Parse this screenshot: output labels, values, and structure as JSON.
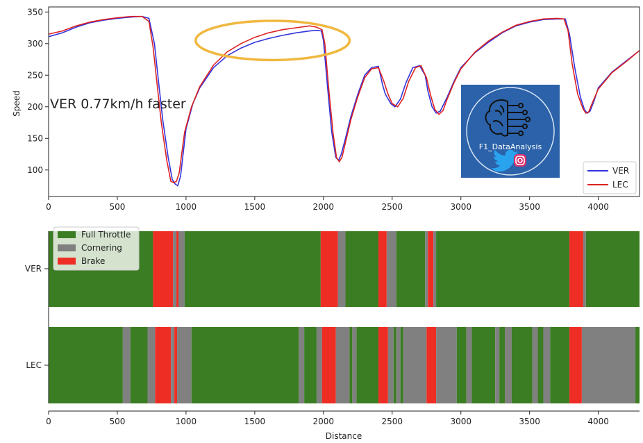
{
  "chart_data": [
    {
      "type": "line",
      "title": "",
      "xlabel": "",
      "ylabel": "Speed",
      "xlim": [
        0,
        4300
      ],
      "ylim": [
        58,
        358
      ],
      "xticks": [
        0,
        500,
        1000,
        1500,
        2000,
        2500,
        3000,
        3500,
        4000
      ],
      "yticks": [
        100,
        150,
        200,
        250,
        300,
        350
      ],
      "grid": false,
      "legend": "lower-right",
      "annotation": "VER 0.77km/h faster",
      "highlight_ellipse": {
        "cx": 1630,
        "cy": 305,
        "rx": 560,
        "ry": 31,
        "color": "#f0b840"
      },
      "series": [
        {
          "name": "VER",
          "color": "#3333dd",
          "x": [
            0,
            100,
            200,
            300,
            400,
            500,
            600,
            680,
            730,
            770,
            800,
            830,
            870,
            900,
            920,
            940,
            960,
            1000,
            1050,
            1100,
            1200,
            1300,
            1400,
            1500,
            1600,
            1700,
            1800,
            1900,
            1950,
            1985,
            2000,
            2030,
            2060,
            2090,
            2110,
            2130,
            2160,
            2200,
            2250,
            2300,
            2350,
            2400,
            2430,
            2450,
            2490,
            2520,
            2560,
            2600,
            2650,
            2700,
            2740,
            2760,
            2790,
            2820,
            2850,
            2900,
            2950,
            3000,
            3100,
            3200,
            3300,
            3400,
            3500,
            3600,
            3700,
            3760,
            3790,
            3830,
            3870,
            3900,
            3920,
            3940,
            3970,
            4000,
            4100,
            4200,
            4300
          ],
          "y": [
            311,
            317,
            326,
            333,
            337,
            340,
            342,
            343,
            340,
            300,
            240,
            180,
            120,
            85,
            78,
            75,
            90,
            165,
            205,
            230,
            262,
            281,
            293,
            302,
            308,
            313,
            317,
            320,
            321,
            320,
            305,
            230,
            160,
            120,
            115,
            125,
            150,
            185,
            220,
            250,
            262,
            264,
            235,
            220,
            205,
            200,
            212,
            238,
            262,
            265,
            250,
            225,
            200,
            190,
            193,
            215,
            240,
            262,
            285,
            302,
            317,
            328,
            334,
            338,
            339,
            339,
            315,
            260,
            215,
            195,
            190,
            193,
            210,
            230,
            255,
            272,
            289
          ]
        },
        {
          "name": "LEC",
          "color": "#dd2222",
          "x": [
            0,
            100,
            200,
            300,
            400,
            500,
            600,
            680,
            730,
            760,
            790,
            820,
            860,
            890,
            910,
            930,
            950,
            990,
            1040,
            1100,
            1200,
            1300,
            1400,
            1500,
            1600,
            1700,
            1800,
            1900,
            1950,
            1990,
            2010,
            2040,
            2070,
            2095,
            2115,
            2135,
            2165,
            2200,
            2250,
            2300,
            2350,
            2400,
            2440,
            2470,
            2500,
            2540,
            2580,
            2620,
            2670,
            2710,
            2750,
            2780,
            2810,
            2840,
            2870,
            2900,
            2950,
            3000,
            3100,
            3200,
            3300,
            3400,
            3500,
            3600,
            3700,
            3750,
            3780,
            3810,
            3850,
            3890,
            3910,
            3930,
            3960,
            4000,
            4100,
            4200,
            4300
          ],
          "y": [
            315,
            320,
            328,
            334,
            338,
            341,
            343,
            343,
            335,
            295,
            235,
            175,
            115,
            82,
            80,
            82,
            95,
            160,
            200,
            232,
            266,
            287,
            300,
            310,
            317,
            322,
            325,
            328,
            326,
            322,
            300,
            225,
            158,
            120,
            113,
            120,
            148,
            180,
            216,
            246,
            260,
            262,
            240,
            220,
            205,
            200,
            213,
            240,
            262,
            265,
            246,
            218,
            196,
            188,
            194,
            212,
            238,
            260,
            286,
            304,
            318,
            329,
            335,
            339,
            340,
            339,
            320,
            268,
            220,
            196,
            190,
            192,
            208,
            228,
            254,
            271,
            289
          ]
        }
      ]
    },
    {
      "type": "bar",
      "title": "",
      "xlabel": "Distance",
      "ylabel": "",
      "xlim": [
        0,
        4300
      ],
      "xticks": [
        0,
        500,
        1000,
        1500,
        2000,
        2500,
        3000,
        3500,
        4000
      ],
      "grid": false,
      "legend": "top-left",
      "categories": [
        "Full Throttle",
        "Cornering",
        "Brake"
      ],
      "colors": {
        "Full Throttle": "#3b7d23",
        "Cornering": "#808080",
        "Brake": "#ee2e24"
      },
      "rows": [
        {
          "name": "VER",
          "segments": [
            [
              0,
              760,
              "Full Throttle"
            ],
            [
              760,
              905,
              "Brake"
            ],
            [
              905,
              930,
              "Cornering"
            ],
            [
              930,
              945,
              "Brake"
            ],
            [
              945,
              990,
              "Cornering"
            ],
            [
              990,
              1980,
              "Full Throttle"
            ],
            [
              1980,
              2105,
              "Brake"
            ],
            [
              2105,
              2160,
              "Cornering"
            ],
            [
              2160,
              2400,
              "Full Throttle"
            ],
            [
              2400,
              2460,
              "Brake"
            ],
            [
              2460,
              2530,
              "Cornering"
            ],
            [
              2530,
              2740,
              "Full Throttle"
            ],
            [
              2740,
              2760,
              "Cornering"
            ],
            [
              2760,
              2800,
              "Brake"
            ],
            [
              2800,
              2820,
              "Cornering"
            ],
            [
              2820,
              3790,
              "Full Throttle"
            ],
            [
              3790,
              3890,
              "Brake"
            ],
            [
              3890,
              3910,
              "Cornering"
            ],
            [
              3910,
              4300,
              "Full Throttle"
            ]
          ]
        },
        {
          "name": "LEC",
          "segments": [
            [
              0,
              540,
              "Full Throttle"
            ],
            [
              540,
              595,
              "Cornering"
            ],
            [
              595,
              720,
              "Full Throttle"
            ],
            [
              720,
              775,
              "Cornering"
            ],
            [
              775,
              890,
              "Brake"
            ],
            [
              890,
              915,
              "Cornering"
            ],
            [
              915,
              935,
              "Brake"
            ],
            [
              935,
              1040,
              "Cornering"
            ],
            [
              1040,
              1820,
              "Full Throttle"
            ],
            [
              1820,
              1860,
              "Cornering"
            ],
            [
              1860,
              1950,
              "Full Throttle"
            ],
            [
              1950,
              1990,
              "Cornering"
            ],
            [
              1990,
              2090,
              "Brake"
            ],
            [
              2090,
              2190,
              "Cornering"
            ],
            [
              2190,
              2210,
              "Full Throttle"
            ],
            [
              2210,
              2240,
              "Cornering"
            ],
            [
              2240,
              2400,
              "Full Throttle"
            ],
            [
              2400,
              2470,
              "Brake"
            ],
            [
              2470,
              2510,
              "Cornering"
            ],
            [
              2510,
              2530,
              "Full Throttle"
            ],
            [
              2530,
              2560,
              "Cornering"
            ],
            [
              2560,
              2580,
              "Full Throttle"
            ],
            [
              2580,
              2750,
              "Cornering"
            ],
            [
              2750,
              2820,
              "Brake"
            ],
            [
              2820,
              2970,
              "Cornering"
            ],
            [
              2970,
              3040,
              "Full Throttle"
            ],
            [
              3040,
              3080,
              "Cornering"
            ],
            [
              3080,
              3250,
              "Full Throttle"
            ],
            [
              3250,
              3280,
              "Cornering"
            ],
            [
              3280,
              3320,
              "Full Throttle"
            ],
            [
              3320,
              3370,
              "Cornering"
            ],
            [
              3370,
              3520,
              "Full Throttle"
            ],
            [
              3520,
              3560,
              "Cornering"
            ],
            [
              3560,
              3600,
              "Full Throttle"
            ],
            [
              3600,
              3650,
              "Cornering"
            ],
            [
              3650,
              3790,
              "Full Throttle"
            ],
            [
              3790,
              3880,
              "Brake"
            ],
            [
              3880,
              4270,
              "Cornering"
            ],
            [
              4270,
              4300,
              "Full Throttle"
            ]
          ]
        }
      ]
    }
  ],
  "logo": {
    "brand_text": "F1_DataAnalysis",
    "icons": [
      "brain-circuit-icon",
      "twitter-bird-icon",
      "instagram-icon"
    ],
    "background": "#2b62a9"
  }
}
